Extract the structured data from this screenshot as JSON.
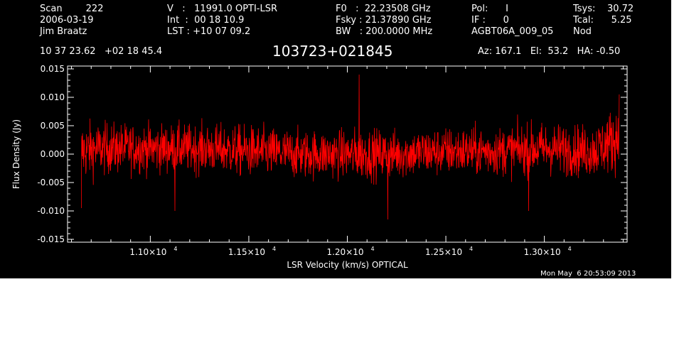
{
  "header": {
    "col1": [
      "Scan        222",
      "2006-03-19",
      "Jim Braatz"
    ],
    "col2": [
      "V   :   11991.0 OPTI-LSR",
      "Int  :  00 18 10.9",
      "LST : +10 07 09.2"
    ],
    "col3": [
      "F0   :  22.23508 GHz",
      "Fsky : 21.37890 GHz",
      "BW   : 200.0000 MHz"
    ],
    "col4": [
      "Pol:      I",
      "IF :      0",
      "AGBT06A_009_05"
    ],
    "col5": [
      "Tsys:    30.72",
      "Tcal:      5.25",
      "Nod"
    ],
    "coords": "10 37 23.62   +02 18 45.4",
    "source": "103723+021845",
    "azel": "Az: 167.1   El:  53.2   HA: -0.50",
    "timestamp": "Mon May  6 20:53:09 2013"
  },
  "chart_data": {
    "type": "line",
    "xlabel": "LSR Velocity (km/s) OPTICAL",
    "ylabel": "Flux Density (Jy)",
    "xlim": [
      10580,
      13420
    ],
    "ylim": [
      -0.0155,
      0.0155
    ],
    "x_ticks": [
      11000,
      11500,
      12000,
      12500,
      13000
    ],
    "x_tick_labels": [
      {
        "mant": "1.10×10",
        "exp": "4"
      },
      {
        "mant": "1.15×10",
        "exp": "4"
      },
      {
        "mant": "1.20×10",
        "exp": "4"
      },
      {
        "mant": "1.25×10",
        "exp": "4"
      },
      {
        "mant": "1.30×10",
        "exp": "4"
      }
    ],
    "y_ticks": [
      -0.015,
      -0.01,
      -0.005,
      0.0,
      0.005,
      0.01,
      0.015
    ],
    "y_tick_labels": [
      "-0.015",
      "-0.010",
      "-0.005",
      "0.000",
      "0.005",
      "0.010",
      "0.015"
    ],
    "series": [
      {
        "color": "#ff0000",
        "x_start": 10650,
        "x_end": 13380,
        "y_envelope": {
          "x": [
            10650,
            10750,
            11000,
            11250,
            11500,
            11750,
            12000,
            12050,
            12250,
            12500,
            12750,
            13000,
            13250,
            13380
          ],
          "mean": [
            0.0005,
            0.001,
            0.001,
            0.001,
            0.0005,
            0.0,
            0.0,
            0.0,
            0.0,
            0.0005,
            0.0005,
            0.001,
            0.0005,
            0.003
          ],
          "rms": [
            0.0035,
            0.003,
            0.0028,
            0.0028,
            0.003,
            0.0028,
            0.0028,
            0.003,
            0.0028,
            0.0028,
            0.0028,
            0.003,
            0.003,
            0.004
          ]
        },
        "peaks": [
          [
            12060,
            0.014
          ],
          [
            12205,
            -0.0115
          ],
          [
            13380,
            0.0105
          ],
          [
            11125,
            -0.01
          ],
          [
            12920,
            -0.01
          ],
          [
            10650,
            -0.0095
          ]
        ]
      }
    ],
    "grid": false
  },
  "colors": {
    "background": "#000000",
    "axes": "#ffffff",
    "trace": "#ff0000"
  }
}
